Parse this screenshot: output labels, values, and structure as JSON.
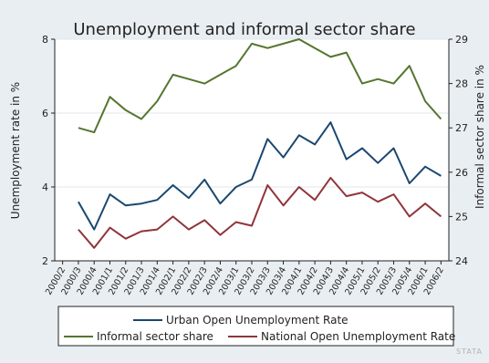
{
  "chart_data": {
    "type": "line",
    "title": "Unemployment and informal sector share",
    "ylabel_left": "Unemployment rate in %",
    "ylabel_right": "Informal sector share in %",
    "ylim_left": [
      2,
      8
    ],
    "yticks_left": [
      2,
      4,
      6,
      8
    ],
    "ylim_right": [
      24,
      29
    ],
    "yticks_right": [
      24,
      25,
      26,
      27,
      28,
      29
    ],
    "x": [
      "2000/2",
      "2000/3",
      "2000/4",
      "2001/1",
      "2001/2",
      "2001/3",
      "2001/4",
      "2002/1",
      "2002/2",
      "2002/3",
      "2002/4",
      "2003/1",
      "2003/2",
      "2003/3",
      "2003/4",
      "2004/1",
      "2004/2",
      "2004/3",
      "2004/4",
      "2005/1",
      "2005/2",
      "2005/3",
      "2005/4",
      "2006/1",
      "2006/2"
    ],
    "series": [
      {
        "name": "Urban Open Unemployment Rate",
        "axis": "left",
        "color": "#1a476f",
        "values": [
          null,
          3.6,
          2.85,
          3.8,
          3.5,
          3.55,
          3.65,
          4.05,
          3.7,
          4.2,
          3.55,
          4.0,
          4.2,
          5.3,
          4.8,
          5.4,
          5.15,
          5.75,
          4.75,
          5.05,
          4.65,
          5.05,
          4.1,
          4.55,
          4.3
        ]
      },
      {
        "name": "Informal sector share",
        "axis": "right",
        "color": "#55752f",
        "values": [
          null,
          27.0,
          26.9,
          27.7,
          27.4,
          27.2,
          27.6,
          28.2,
          28.1,
          28.0,
          28.2,
          28.4,
          28.9,
          28.8,
          28.9,
          29.0,
          28.8,
          28.6,
          28.7,
          28.0,
          28.1,
          28.0,
          28.4,
          27.6,
          27.2
        ]
      },
      {
        "name": "National Open Unemployment Rate",
        "axis": "left",
        "color": "#90353b",
        "values": [
          null,
          2.85,
          2.35,
          2.9,
          2.6,
          2.8,
          2.85,
          3.2,
          2.85,
          3.1,
          2.7,
          3.05,
          2.95,
          4.05,
          3.5,
          4.0,
          3.65,
          4.25,
          3.75,
          3.85,
          3.6,
          3.8,
          3.2,
          3.55,
          3.2
        ]
      }
    ],
    "legend": {
      "position": "bottom",
      "entries": [
        "Urban Open Unemployment Rate",
        "Informal sector share",
        "National Open Unemployment Rate"
      ]
    },
    "grid": true
  },
  "watermark": "STATA",
  "colors": {
    "background": "#e9eef2",
    "plot_area": "#ffffff",
    "grid": "#e2e6ea"
  }
}
